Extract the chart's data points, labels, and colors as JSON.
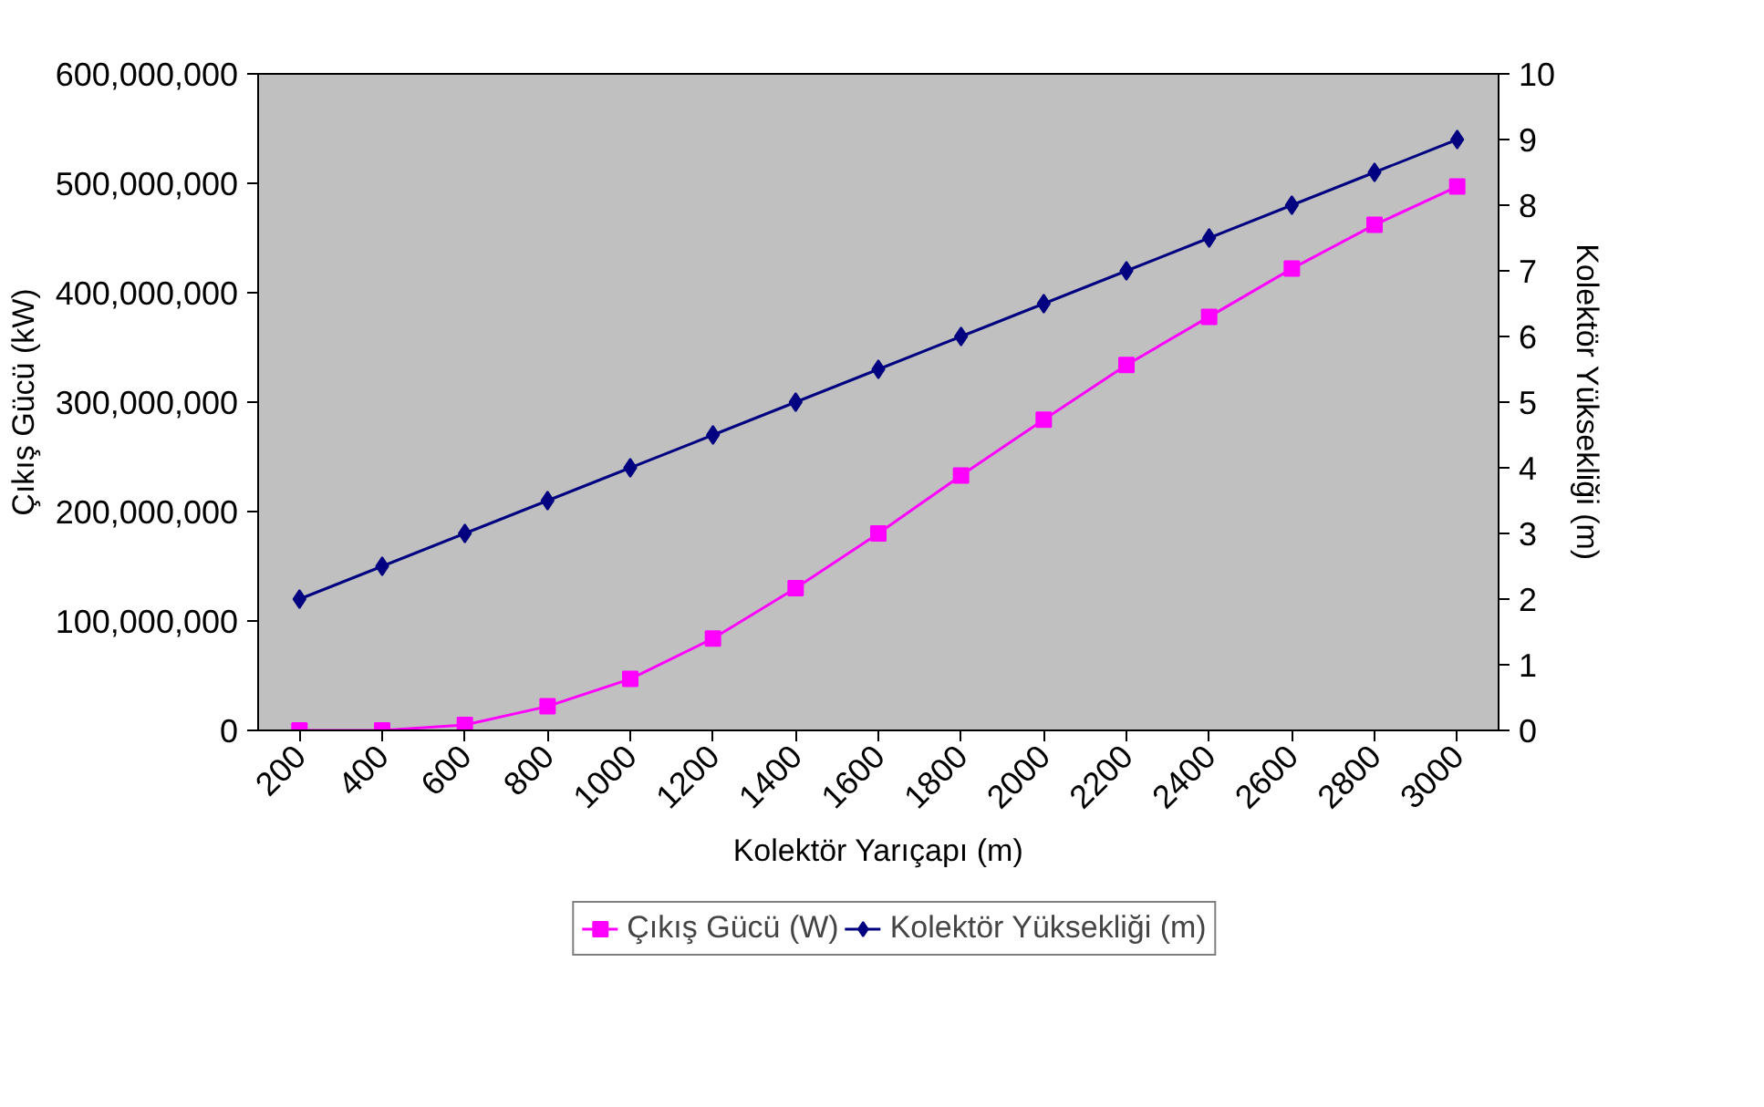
{
  "chart_data": {
    "type": "line",
    "xlabel": "Kolektör Yarıçapı (m)",
    "ylabel": "Çıkış Gücü (kW)",
    "y2label": "Kolektör Yüksekliği (m)",
    "categories": [
      "200",
      "400",
      "600",
      "800",
      "1000",
      "1200",
      "1400",
      "1600",
      "1800",
      "2000",
      "2200",
      "2400",
      "2600",
      "2800",
      "3000"
    ],
    "series": [
      {
        "name": "Çıkış Gücü (W)",
        "color": "#ff00ff",
        "marker": "square",
        "values": [
          0,
          0,
          5000000,
          22000000,
          47000000,
          84000000,
          130000000,
          180000000,
          233000000,
          284000000,
          334000000,
          378000000,
          422000000,
          462000000,
          497000000
        ]
      },
      {
        "name": "Kolektör Yüksekliği (m)",
        "color": "#000080",
        "marker": "diamond",
        "axis": "y2",
        "values": [
          2,
          2.5,
          3,
          3.5,
          4,
          4.5,
          5,
          5.5,
          6,
          6.5,
          7,
          7.5,
          8,
          8.5,
          9
        ]
      }
    ],
    "ylim": [
      0,
      600000000
    ],
    "yticks": [
      {
        "value": 0,
        "label": "0"
      },
      {
        "value": 100000000,
        "label": "100,000,000"
      },
      {
        "value": 200000000,
        "label": "200,000,000"
      },
      {
        "value": 300000000,
        "label": "300,000,000"
      },
      {
        "value": 400000000,
        "label": "400,000,000"
      },
      {
        "value": 500000000,
        "label": "500,000,000"
      },
      {
        "value": 600000000,
        "label": "600,000,000"
      }
    ],
    "y2lim": [
      0,
      10
    ],
    "y2ticks": [
      0,
      1,
      2,
      3,
      4,
      5,
      6,
      7,
      8,
      9,
      10
    ],
    "legend": "bottom"
  }
}
